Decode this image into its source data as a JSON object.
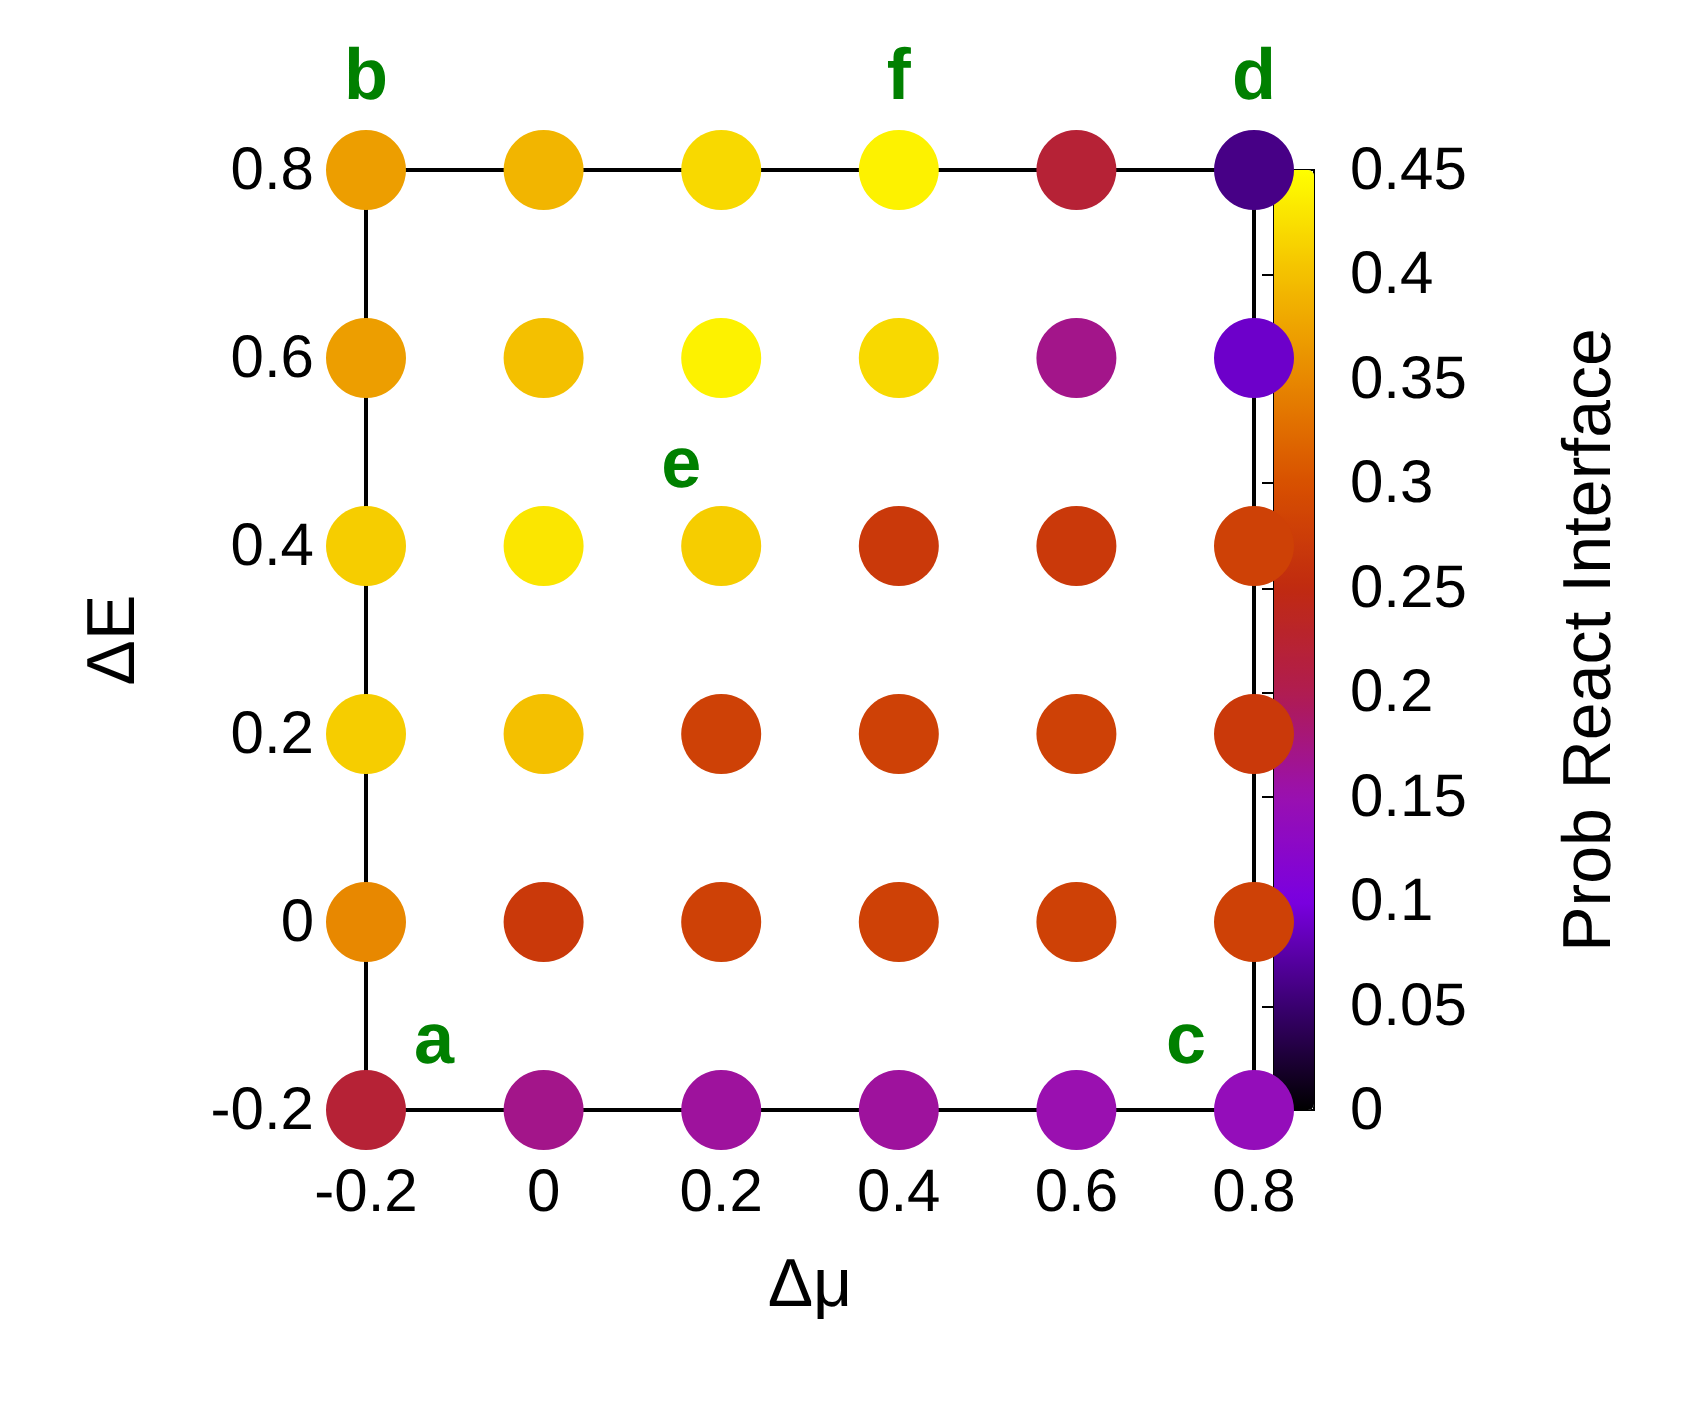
{
  "chart_data": {
    "type": "scatter",
    "xlabel": "Δμ",
    "ylabel": "ΔE",
    "clabel": "Prob React Interface",
    "x": [
      -0.2,
      0,
      0.2,
      0.4,
      0.6,
      0.8,
      -0.2,
      0,
      0.2,
      0.4,
      0.6,
      0.8,
      -0.2,
      0,
      0.2,
      0.4,
      0.6,
      0.8,
      -0.2,
      0,
      0.2,
      0.4,
      0.6,
      0.8,
      -0.2,
      0,
      0.2,
      0.4,
      0.6,
      0.8,
      -0.2,
      0,
      0.2,
      0.4,
      0.6,
      0.8
    ],
    "values": [
      0.8,
      0.8,
      0.8,
      0.8,
      0.8,
      0.8,
      0.6,
      0.6,
      0.6,
      0.6,
      0.6,
      0.6,
      0.4,
      0.4,
      0.4,
      0.4,
      0.4,
      0.4,
      0.2,
      0.2,
      0.2,
      0.2,
      0.2,
      0.2,
      0,
      0,
      0,
      0,
      0,
      0,
      -0.2,
      -0.2,
      -0.2,
      -0.2,
      -0.2,
      -0.2
    ],
    "cvalues": [
      0.37,
      0.39,
      0.42,
      0.44,
      0.22,
      0.06,
      0.37,
      0.4,
      0.44,
      0.42,
      0.17,
      0.09,
      0.41,
      0.43,
      0.41,
      0.27,
      0.27,
      0.28,
      0.41,
      0.4,
      0.28,
      0.28,
      0.28,
      0.27,
      0.35,
      0.27,
      0.28,
      0.28,
      0.28,
      0.28,
      0.22,
      0.17,
      0.16,
      0.16,
      0.15,
      0.14
    ],
    "xlim": [
      -0.2,
      0.8
    ],
    "xticks": [
      -0.2,
      0,
      0.2,
      0.4,
      0.6,
      0.8
    ],
    "ylim": [
      -0.2,
      0.8
    ],
    "yticks": [
      -0.2,
      0,
      0.2,
      0.4,
      0.6,
      0.8
    ],
    "clim": [
      0,
      0.45
    ],
    "cticks": [
      0,
      0.05,
      0.1,
      0.15,
      0.2,
      0.25,
      0.3,
      0.35,
      0.4,
      0.45
    ],
    "marker": "circle",
    "grid": false,
    "annotations": [
      {
        "text": "a",
        "x": -0.2,
        "y": -0.2
      },
      {
        "text": "b",
        "x": -0.2,
        "y": 0.8
      },
      {
        "text": "c",
        "x": 0.8,
        "y": -0.2
      },
      {
        "text": "d",
        "x": 0.8,
        "y": 0.8
      },
      {
        "text": "e",
        "x": 0.2,
        "y": 0.4
      },
      {
        "text": "f",
        "x": 0.4,
        "y": 0.8
      }
    ]
  }
}
